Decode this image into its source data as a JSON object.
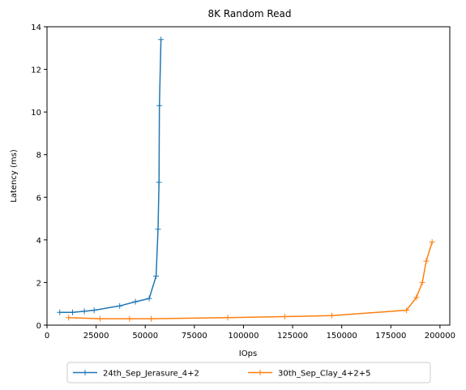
{
  "chart_data": {
    "type": "line",
    "title": "8K  Random Read",
    "xlabel": "IOps",
    "ylabel": "Latency (ms)",
    "xlim": [
      0,
      205000
    ],
    "ylim": [
      0,
      14
    ],
    "xticks": [
      0,
      25000,
      50000,
      75000,
      100000,
      125000,
      150000,
      175000,
      200000
    ],
    "yticks": [
      0,
      2,
      4,
      6,
      8,
      10,
      12,
      14
    ],
    "grid": false,
    "legend_position": "bottom-center",
    "series": [
      {
        "name": "24th_Sep_Jerasure_4+2",
        "color": "#1f77b4",
        "marker": "plus",
        "x": [
          6500,
          13000,
          19000,
          24000,
          37000,
          45000,
          52000,
          55500,
          56500,
          57000,
          57200,
          58000
        ],
        "y": [
          0.6,
          0.6,
          0.65,
          0.7,
          0.9,
          1.1,
          1.25,
          2.3,
          4.5,
          6.7,
          10.3,
          13.4
        ]
      },
      {
        "name": "30th_Sep_Clay_4+2+5",
        "color": "#ff7f0e",
        "marker": "plus",
        "x": [
          11000,
          27000,
          42000,
          53000,
          92000,
          121000,
          145000,
          183000,
          188000,
          191000,
          193000,
          196000
        ],
        "y": [
          0.35,
          0.3,
          0.3,
          0.3,
          0.35,
          0.4,
          0.45,
          0.7,
          1.3,
          2.0,
          3.0,
          3.9
        ]
      }
    ]
  }
}
